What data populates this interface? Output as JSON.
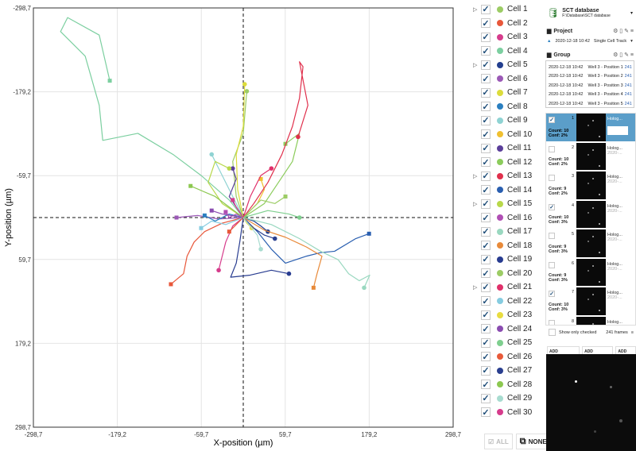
{
  "chart_data": {
    "type": "line",
    "xlabel": "X-position (µm)",
    "ylabel": "Y-position (µm)",
    "xlim": [
      -298.7,
      298.7
    ],
    "ylim": [
      -298.7,
      298.7
    ],
    "y_inverted": true,
    "xticks": [
      "-298,7",
      "-179,2",
      "-59,7",
      "59,7",
      "179,2",
      "298,7"
    ],
    "yticks": [
      "-298,7",
      "-179,2",
      "-59,7",
      "59,7",
      "179,2",
      "298,7"
    ],
    "tick_values": [
      -298.7,
      -179.2,
      -59.7,
      59.7,
      179.2,
      298.7
    ],
    "grid": true,
    "series": [
      {
        "name": "Cell 1",
        "color": "#9ccc65",
        "points": [
          [
            0,
            0
          ],
          [
            -10,
            -30
          ],
          [
            -15,
            -80
          ],
          [
            0,
            -120
          ],
          [
            5,
            -180
          ]
        ]
      },
      {
        "name": "Cell 2",
        "color": "#e8573a",
        "points": [
          [
            0,
            0
          ],
          [
            -30,
            8
          ],
          [
            -55,
            20
          ],
          [
            -70,
            35
          ],
          [
            -80,
            55
          ],
          [
            -85,
            80
          ],
          [
            -103,
            95
          ]
        ]
      },
      {
        "name": "Cell 3",
        "color": "#d63c8c",
        "points": [
          [
            0,
            0
          ],
          [
            -15,
            12
          ],
          [
            -25,
            35
          ],
          [
            -30,
            55
          ],
          [
            -35,
            75
          ]
        ]
      },
      {
        "name": "Cell 4",
        "color": "#7ccfa0",
        "points": [
          [
            0,
            0
          ],
          [
            -20,
            -25
          ],
          [
            -60,
            -60
          ],
          [
            -100,
            -90
          ],
          [
            -150,
            -120
          ],
          [
            -200,
            -110
          ],
          [
            -205,
            -160
          ],
          [
            -225,
            -230
          ],
          [
            -260,
            -265
          ],
          [
            -250,
            -285
          ],
          [
            -205,
            -260
          ],
          [
            -190,
            -195
          ]
        ]
      },
      {
        "name": "Cell 5",
        "color": "#233f8f",
        "points": [
          [
            0,
            0
          ],
          [
            15,
            5
          ],
          [
            25,
            12
          ],
          [
            35,
            20
          ]
        ]
      },
      {
        "name": "Cell 6",
        "color": "#9b59b6",
        "points": [
          [
            0,
            0
          ],
          [
            -35,
            2
          ],
          [
            -65,
            -3
          ],
          [
            -95,
            0
          ]
        ]
      },
      {
        "name": "Cell 7",
        "color": "#dcdc3c",
        "points": [
          [
            0,
            0
          ],
          [
            -8,
            -40
          ],
          [
            -10,
            -90
          ],
          [
            0,
            -130
          ],
          [
            2,
            -190
          ]
        ]
      },
      {
        "name": "Cell 8",
        "color": "#2a7fc0",
        "points": [
          [
            0,
            0
          ],
          [
            -20,
            -5
          ],
          [
            -40,
            5
          ],
          [
            -55,
            -3
          ]
        ]
      },
      {
        "name": "Cell 9",
        "color": "#8fd3d3",
        "points": [
          [
            0,
            0
          ],
          [
            -15,
            -30
          ],
          [
            -30,
            -60
          ],
          [
            -45,
            -90
          ]
        ]
      },
      {
        "name": "Cell 10",
        "color": "#f0c030",
        "points": [
          [
            0,
            0
          ],
          [
            20,
            -20
          ],
          [
            30,
            -40
          ],
          [
            25,
            -55
          ]
        ]
      },
      {
        "name": "Cell 11",
        "color": "#5b3f9a",
        "points": [
          [
            0,
            0
          ],
          [
            -20,
            -30
          ],
          [
            -10,
            -55
          ],
          [
            -15,
            -70
          ]
        ]
      },
      {
        "name": "Cell 12",
        "color": "#8ccc5c",
        "points": [
          [
            0,
            0
          ],
          [
            30,
            -20
          ],
          [
            50,
            -50
          ],
          [
            70,
            -80
          ],
          [
            80,
            -120
          ],
          [
            60,
            -105
          ]
        ]
      },
      {
        "name": "Cell 13",
        "color": "#e0304c",
        "points": [
          [
            0,
            0
          ],
          [
            15,
            -20
          ],
          [
            35,
            -50
          ],
          [
            55,
            -90
          ],
          [
            70,
            -130
          ],
          [
            80,
            -170
          ],
          [
            85,
            -215
          ],
          [
            80,
            -222
          ],
          [
            92,
            -160
          ],
          [
            78,
            -115
          ]
        ]
      },
      {
        "name": "Cell 14",
        "color": "#2a5fb0",
        "points": [
          [
            0,
            0
          ],
          [
            20,
            20
          ],
          [
            40,
            45
          ],
          [
            60,
            65
          ],
          [
            90,
            55
          ],
          [
            110,
            50
          ],
          [
            130,
            48
          ],
          [
            160,
            30
          ],
          [
            179,
            23
          ]
        ]
      },
      {
        "name": "Cell 15",
        "color": "#b8d84a",
        "points": [
          [
            0,
            0
          ],
          [
            -30,
            -20
          ],
          [
            -50,
            -50
          ],
          [
            -40,
            -80
          ],
          [
            -20,
            -70
          ]
        ]
      },
      {
        "name": "Cell 16",
        "color": "#b04fb4",
        "points": [
          [
            0,
            0
          ],
          [
            -10,
            -5
          ],
          [
            -20,
            0
          ],
          [
            -25,
            -8
          ]
        ]
      },
      {
        "name": "Cell 17",
        "color": "#9ad8c0",
        "points": [
          [
            0,
            0
          ],
          [
            40,
            10
          ],
          [
            80,
            30
          ],
          [
            110,
            48
          ],
          [
            135,
            60
          ],
          [
            150,
            80
          ],
          [
            165,
            90
          ],
          [
            180,
            82
          ],
          [
            172,
            100
          ]
        ]
      },
      {
        "name": "Cell 18",
        "color": "#e88a3a",
        "points": [
          [
            0,
            0
          ],
          [
            30,
            18
          ],
          [
            60,
            28
          ],
          [
            90,
            42
          ],
          [
            112,
            55
          ],
          [
            105,
            80
          ],
          [
            100,
            100
          ]
        ]
      },
      {
        "name": "Cell 19",
        "color": "#283c90",
        "points": [
          [
            0,
            0
          ],
          [
            -5,
            35
          ],
          [
            -10,
            65
          ],
          [
            -18,
            85
          ],
          [
            10,
            82
          ],
          [
            40,
            75
          ],
          [
            65,
            80
          ]
        ]
      },
      {
        "name": "Cell 20",
        "color": "#9ccc65",
        "points": [
          [
            0,
            0
          ],
          [
            25,
            -25
          ],
          [
            45,
            -20
          ],
          [
            60,
            -30
          ]
        ]
      },
      {
        "name": "Cell 21",
        "color": "#e0306a",
        "points": [
          [
            0,
            0
          ],
          [
            10,
            -30
          ],
          [
            25,
            -60
          ],
          [
            40,
            -70
          ]
        ]
      },
      {
        "name": "Cell 22",
        "color": "#86cce0",
        "points": [
          [
            0,
            0
          ],
          [
            -25,
            10
          ],
          [
            -45,
            5
          ],
          [
            -60,
            15
          ]
        ]
      },
      {
        "name": "Cell 23",
        "color": "#e8dc40",
        "points": [
          [
            0,
            0
          ],
          [
            5,
            8
          ],
          [
            12,
            15
          ]
        ]
      },
      {
        "name": "Cell 24",
        "color": "#8a4cb0",
        "points": [
          [
            0,
            0
          ],
          [
            -30,
            -5
          ],
          [
            -45,
            -10
          ]
        ]
      },
      {
        "name": "Cell 25",
        "color": "#7fcf8f",
        "points": [
          [
            0,
            0
          ],
          [
            35,
            -10
          ],
          [
            65,
            -5
          ],
          [
            80,
            0
          ]
        ]
      },
      {
        "name": "Cell 26",
        "color": "#e85a3a",
        "points": [
          [
            0,
            0
          ],
          [
            -10,
            10
          ],
          [
            -20,
            20
          ]
        ]
      },
      {
        "name": "Cell 27",
        "color": "#2a3f8f",
        "points": [
          [
            0,
            0
          ],
          [
            15,
            15
          ],
          [
            30,
            25
          ],
          [
            45,
            30
          ]
        ]
      },
      {
        "name": "Cell 28",
        "color": "#8cc850",
        "points": [
          [
            0,
            0
          ],
          [
            -40,
            -30
          ],
          [
            -75,
            -45
          ]
        ]
      },
      {
        "name": "Cell 29",
        "color": "#a8dcd0",
        "points": [
          [
            0,
            0
          ],
          [
            20,
            25
          ],
          [
            25,
            45
          ]
        ]
      },
      {
        "name": "Cell 30",
        "color": "#d63c8c",
        "points": [
          [
            0,
            0
          ],
          [
            -10,
            -15
          ],
          [
            -15,
            -25
          ]
        ]
      }
    ]
  },
  "legend": {
    "items": [
      "Cell 1",
      "Cell 2",
      "Cell 3",
      "Cell 4",
      "Cell 5",
      "Cell 6",
      "Cell 7",
      "Cell 8",
      "Cell 9",
      "Cell 10",
      "Cell 11",
      "Cell 12",
      "Cell 13",
      "Cell 14",
      "Cell 15",
      "Cell 16",
      "Cell 17",
      "Cell 18",
      "Cell 19",
      "Cell 20",
      "Cell 21",
      "Cell 22",
      "Cell 23",
      "Cell 24",
      "Cell 25",
      "Cell 26",
      "Cell 27",
      "Cell 28",
      "Cell 29",
      "Cell 30"
    ],
    "expandable": [
      0,
      4,
      12,
      14,
      20
    ],
    "all_label": "ALL",
    "none_label": "NONE"
  },
  "side": {
    "db_title": "SCT database",
    "db_path": "F:\\Database\\SCT database",
    "project_label": "Project",
    "project_date": "2020-12-18 10:42",
    "project_name": "Single Cell Track",
    "group_label": "Group",
    "groups": [
      [
        "2020-12-18 10:42",
        "Well 3 - Position 1",
        "241"
      ],
      [
        "2020-12-18 10:42",
        "Well 3 - Position 2",
        "241"
      ],
      [
        "2020-12-18 10:42",
        "Well 3 - Position 3",
        "241"
      ],
      [
        "2020-12-18 10:42",
        "Well 3 - Position 4",
        "241"
      ],
      [
        "2020-12-18 10:42",
        "Well 3 - Position 5",
        "241"
      ]
    ],
    "frames": [
      {
        "n": "1",
        "count": "Count: 10",
        "conf": "Conf: 2%",
        "checked": true,
        "name": "Holog..."
      },
      {
        "n": "2",
        "count": "Count: 10",
        "conf": "Conf: 2%",
        "checked": false,
        "name": "Holog...",
        "date": "2020-..."
      },
      {
        "n": "3",
        "count": "Count: 9",
        "conf": "Conf: 2%",
        "checked": false,
        "name": "Holog...",
        "date": "2020-..."
      },
      {
        "n": "4",
        "count": "Count: 10",
        "conf": "Conf: 3%",
        "checked": true,
        "name": "Holog...",
        "date": "2020-..."
      },
      {
        "n": "5",
        "count": "Count: 9",
        "conf": "Conf: 3%",
        "checked": false,
        "name": "Holog...",
        "date": "2020-..."
      },
      {
        "n": "6",
        "count": "Count: 9",
        "conf": "Conf: 3%",
        "checked": false,
        "name": "Holog...",
        "date": "2020-..."
      },
      {
        "n": "7",
        "count": "Count: 10",
        "conf": "Conf: 3%",
        "checked": true,
        "name": "Holog...",
        "date": "2020-..."
      },
      {
        "n": "8",
        "count": "",
        "conf": "",
        "checked": false,
        "name": "Holog...",
        "date": ""
      }
    ],
    "show_only_checked": "Show only checked",
    "frames_count": "241 frames",
    "add_selected": "ADD SELECTED",
    "add_checked": "ADD CHECKED",
    "add_all": "ADD ALL"
  }
}
